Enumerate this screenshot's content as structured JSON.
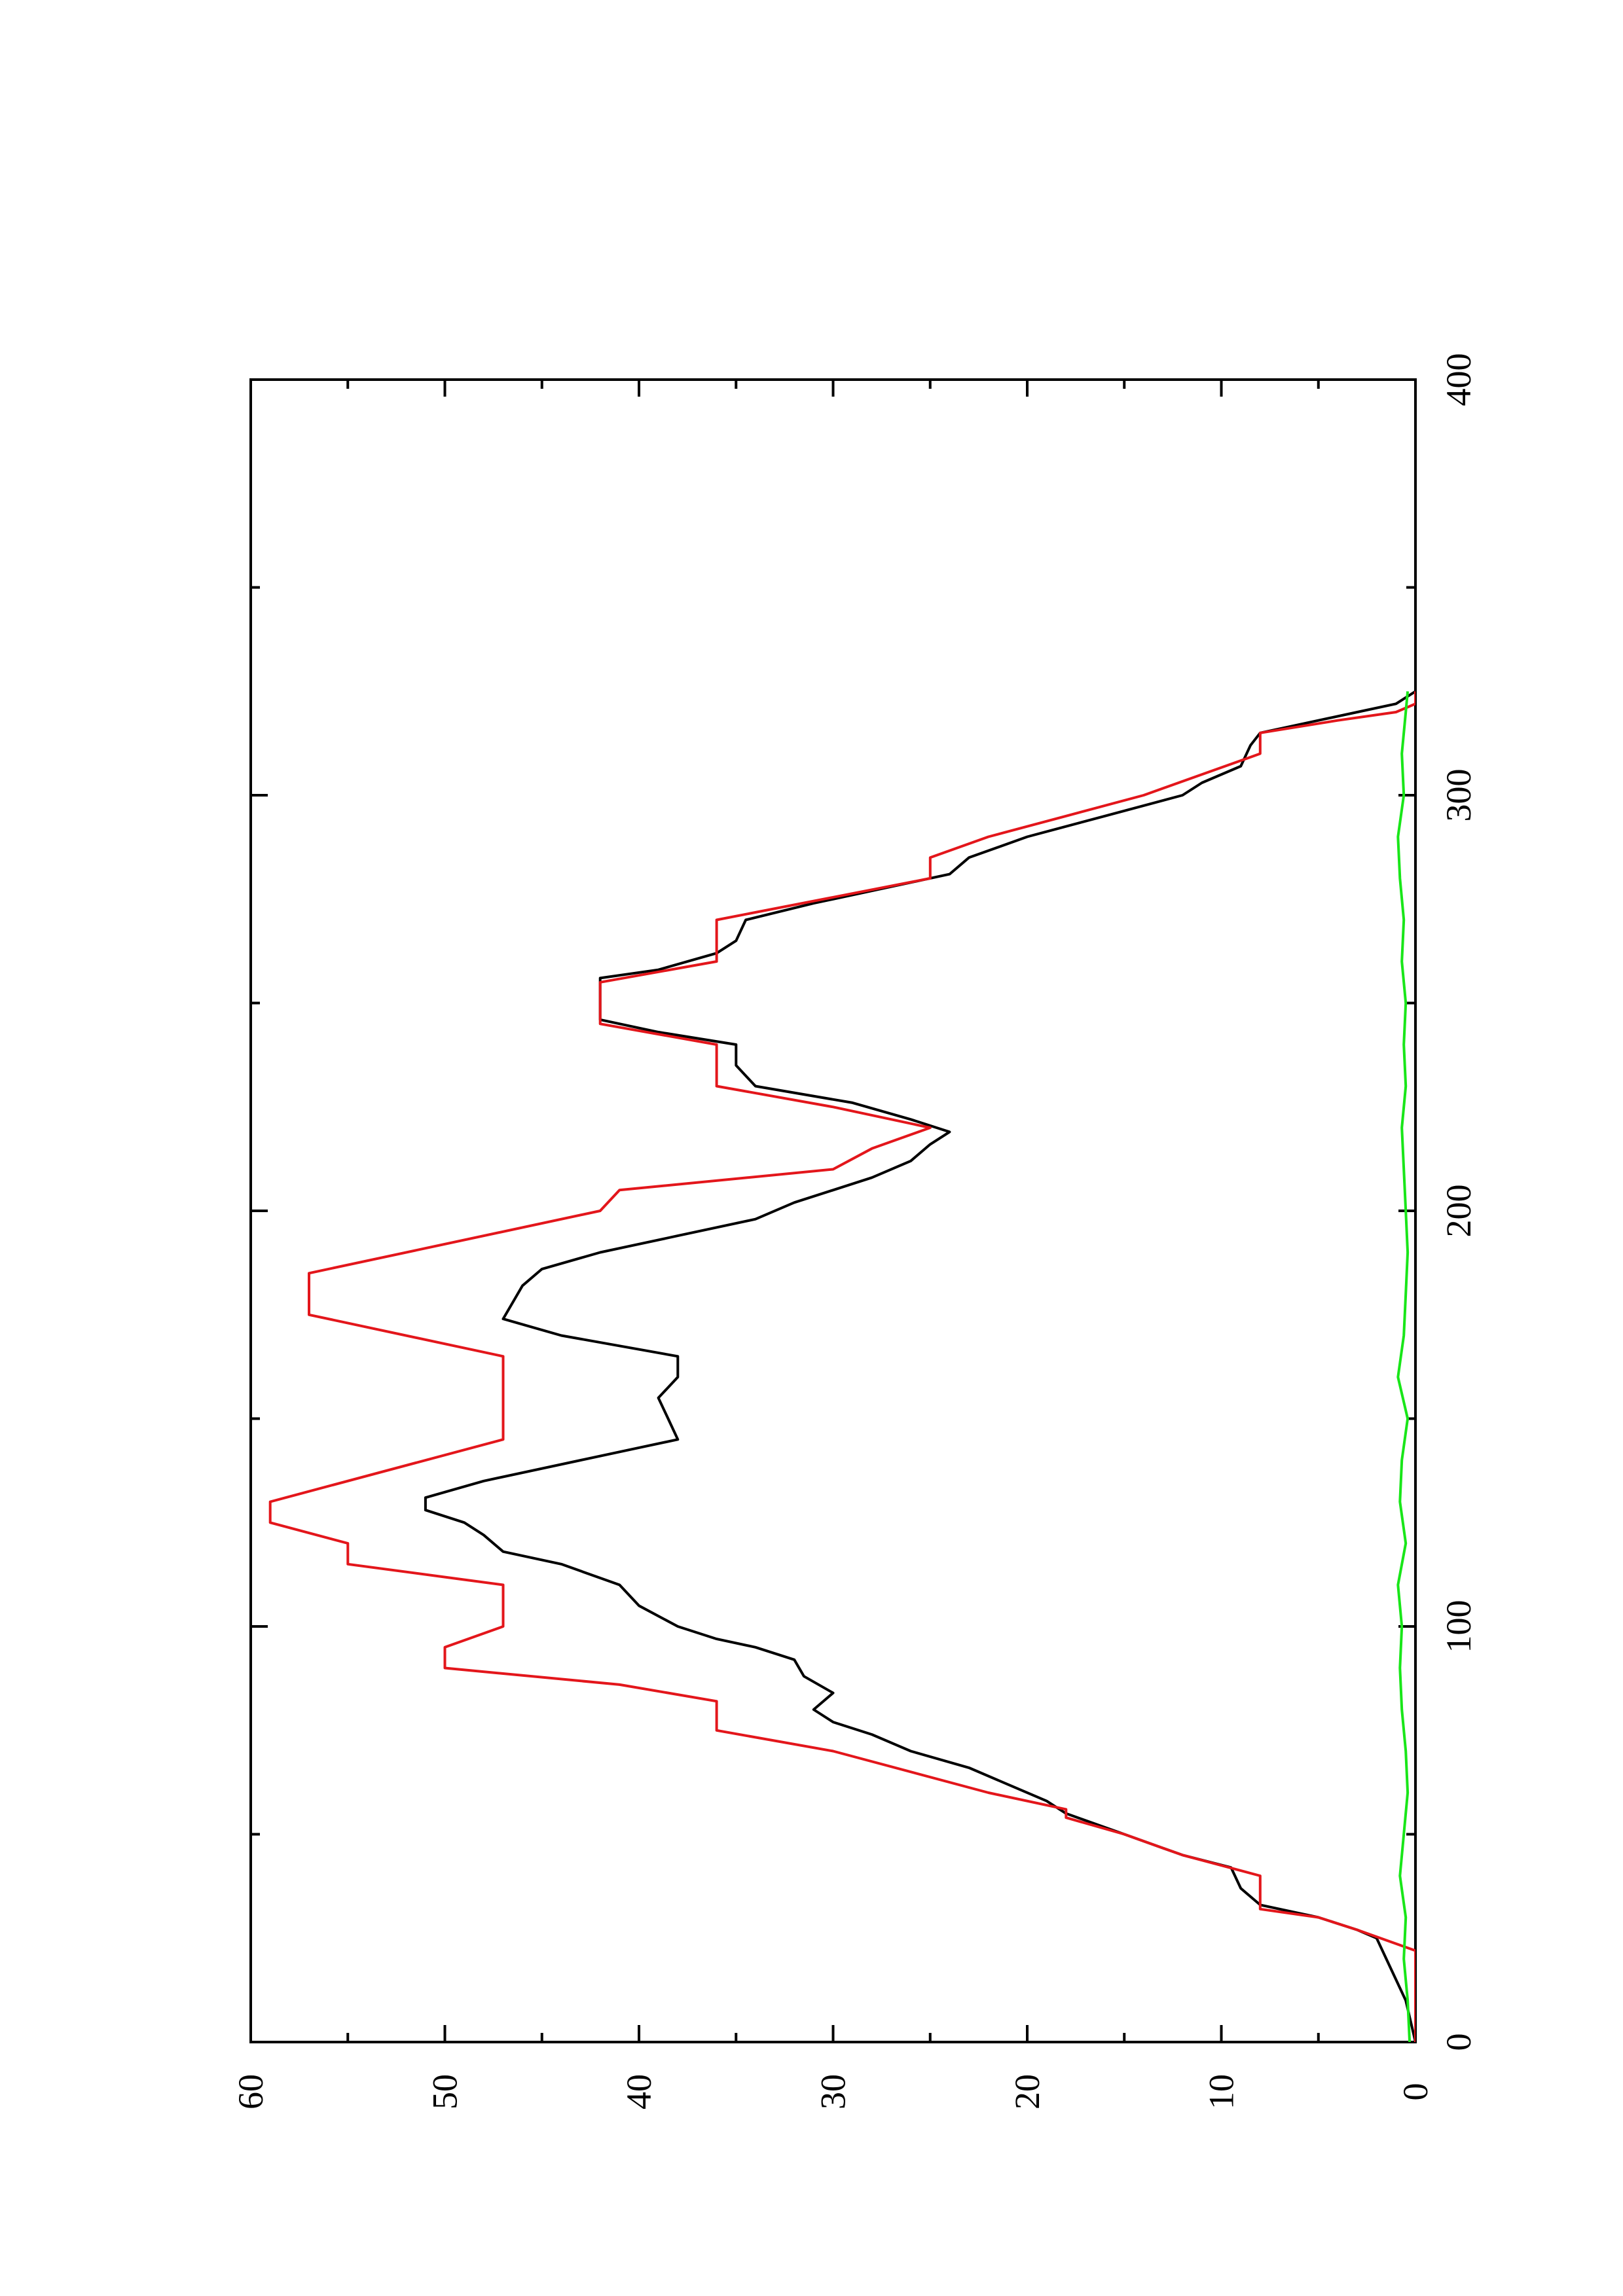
{
  "chart_data": {
    "type": "line",
    "orientation": "rotated-90-counterclockwise",
    "title": "",
    "xlabel": "",
    "ylabel": "",
    "xlim": [
      0,
      400
    ],
    "ylim": [
      0,
      60
    ],
    "x_ticks": [
      0,
      100,
      200,
      300,
      400
    ],
    "y_ticks": [
      0,
      10,
      20,
      30,
      40,
      50,
      60
    ],
    "x_tick_labels": [
      "0",
      "100",
      "200",
      "300",
      "400"
    ],
    "y_tick_labels": [
      "0",
      "10",
      "20",
      "30",
      "40",
      "50",
      "60"
    ],
    "x_minor_ticks": [
      50,
      150,
      250,
      350
    ],
    "y_minor_ticks": [
      5,
      15,
      25,
      35,
      45,
      55
    ],
    "grid": false,
    "legend": "none",
    "series": [
      {
        "color": "#000000",
        "points": [
          [
            0,
            0
          ],
          [
            10,
            0.5
          ],
          [
            20,
            1.5
          ],
          [
            25,
            2
          ],
          [
            27,
            3
          ],
          [
            30,
            5
          ],
          [
            33,
            8
          ],
          [
            37,
            9
          ],
          [
            42,
            9.5
          ],
          [
            45,
            12
          ],
          [
            50,
            15
          ],
          [
            55,
            18
          ],
          [
            58,
            19
          ],
          [
            62,
            21
          ],
          [
            66,
            23
          ],
          [
            70,
            26
          ],
          [
            74,
            28
          ],
          [
            77,
            30
          ],
          [
            80,
            31
          ],
          [
            84,
            30
          ],
          [
            88,
            31.5
          ],
          [
            92,
            32
          ],
          [
            95,
            34
          ],
          [
            97,
            36
          ],
          [
            100,
            38
          ],
          [
            105,
            40
          ],
          [
            110,
            41
          ],
          [
            115,
            44
          ],
          [
            118,
            47
          ],
          [
            122,
            48
          ],
          [
            125,
            49
          ],
          [
            128,
            51
          ],
          [
            131,
            51
          ],
          [
            135,
            48
          ],
          [
            140,
            43
          ],
          [
            143,
            40
          ],
          [
            145,
            38
          ],
          [
            150,
            38.5
          ],
          [
            155,
            39
          ],
          [
            160,
            38
          ],
          [
            165,
            38
          ],
          [
            170,
            44
          ],
          [
            174,
            47
          ],
          [
            178,
            46.5
          ],
          [
            182,
            46
          ],
          [
            186,
            45
          ],
          [
            190,
            42
          ],
          [
            194,
            38
          ],
          [
            198,
            34
          ],
          [
            202,
            32
          ],
          [
            205,
            30
          ],
          [
            208,
            28
          ],
          [
            212,
            26
          ],
          [
            216,
            25
          ],
          [
            219,
            24
          ],
          [
            222,
            26
          ],
          [
            226,
            29
          ],
          [
            230,
            34
          ],
          [
            235,
            35
          ],
          [
            240,
            35
          ],
          [
            243,
            39
          ],
          [
            246,
            42
          ],
          [
            250,
            42
          ],
          [
            253,
            42
          ],
          [
            256,
            42
          ],
          [
            258,
            39
          ],
          [
            262,
            36
          ],
          [
            265,
            35
          ],
          [
            270,
            34.5
          ],
          [
            274,
            31
          ],
          [
            278,
            27
          ],
          [
            281,
            24
          ],
          [
            285,
            23
          ],
          [
            290,
            20
          ],
          [
            295,
            16
          ],
          [
            300,
            12
          ],
          [
            303,
            11
          ],
          [
            307,
            9
          ],
          [
            312,
            8.5
          ],
          [
            315,
            8
          ],
          [
            318,
            5
          ],
          [
            320,
            3
          ],
          [
            322,
            1
          ],
          [
            325,
            0
          ]
        ]
      },
      {
        "color": "#e3161b",
        "points": [
          [
            0,
            0
          ],
          [
            22,
            0
          ],
          [
            27,
            3
          ],
          [
            30,
            5
          ],
          [
            32,
            8
          ],
          [
            40,
            8
          ],
          [
            45,
            12
          ],
          [
            50,
            15
          ],
          [
            54,
            18
          ],
          [
            56,
            18
          ],
          [
            60,
            22
          ],
          [
            70,
            30
          ],
          [
            75,
            36
          ],
          [
            82,
            36
          ],
          [
            86,
            41
          ],
          [
            90,
            50
          ],
          [
            95,
            50
          ],
          [
            100,
            47
          ],
          [
            105,
            47
          ],
          [
            110,
            47
          ],
          [
            115,
            55
          ],
          [
            120,
            55
          ],
          [
            125,
            59
          ],
          [
            130,
            59
          ],
          [
            145,
            47
          ],
          [
            165,
            47
          ],
          [
            175,
            57
          ],
          [
            185,
            57
          ],
          [
            200,
            42
          ],
          [
            205,
            41
          ],
          [
            210,
            30
          ],
          [
            215,
            28
          ],
          [
            220,
            25
          ],
          [
            225,
            30
          ],
          [
            230,
            36
          ],
          [
            240,
            36
          ],
          [
            245,
            42
          ],
          [
            255,
            42
          ],
          [
            260,
            36
          ],
          [
            270,
            36
          ],
          [
            280,
            25
          ],
          [
            285,
            25
          ],
          [
            290,
            22
          ],
          [
            295,
            18
          ],
          [
            300,
            14
          ],
          [
            305,
            11
          ],
          [
            310,
            8
          ],
          [
            315,
            8
          ],
          [
            318,
            4
          ],
          [
            320,
            1
          ],
          [
            322,
            0
          ],
          [
            325,
            0
          ]
        ]
      },
      {
        "color": "#19e619",
        "points": [
          [
            0,
            0.3
          ],
          [
            10,
            0.4
          ],
          [
            20,
            0.6
          ],
          [
            30,
            0.5
          ],
          [
            40,
            0.8
          ],
          [
            50,
            0.6
          ],
          [
            60,
            0.4
          ],
          [
            70,
            0.5
          ],
          [
            80,
            0.7
          ],
          [
            90,
            0.8
          ],
          [
            100,
            0.7
          ],
          [
            110,
            0.9
          ],
          [
            120,
            0.5
          ],
          [
            130,
            0.8
          ],
          [
            140,
            0.7
          ],
          [
            150,
            0.4
          ],
          [
            160,
            0.9
          ],
          [
            170,
            0.6
          ],
          [
            180,
            0.5
          ],
          [
            190,
            0.4
          ],
          [
            200,
            0.5
          ],
          [
            210,
            0.6
          ],
          [
            220,
            0.7
          ],
          [
            230,
            0.5
          ],
          [
            240,
            0.6
          ],
          [
            250,
            0.5
          ],
          [
            260,
            0.7
          ],
          [
            270,
            0.6
          ],
          [
            280,
            0.8
          ],
          [
            290,
            0.9
          ],
          [
            300,
            0.6
          ],
          [
            310,
            0.7
          ],
          [
            320,
            0.5
          ],
          [
            325,
            0.4
          ]
        ]
      }
    ]
  }
}
